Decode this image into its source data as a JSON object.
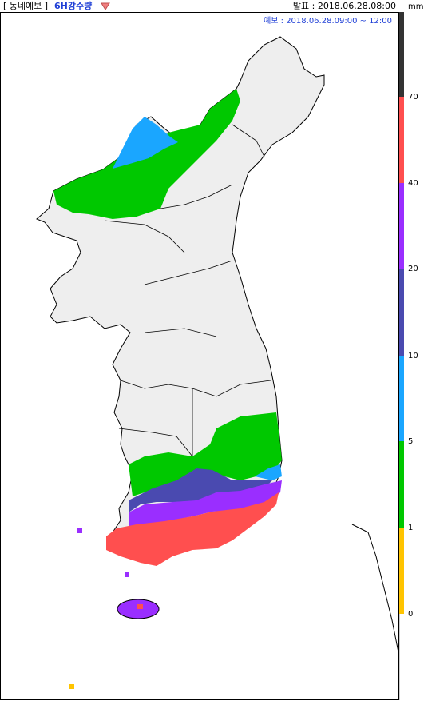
{
  "header": {
    "title": "[ 동네예보 ]",
    "variable": "6H강수량",
    "issued": "발표 : 2018.06.28.08:00",
    "forecast_time": "예보 : 2018.06.28.09:00 ~ 12:00"
  },
  "legend": {
    "unit": "mm",
    "labels": [
      "70",
      "40",
      "20",
      "10",
      "5",
      "1",
      "0"
    ],
    "colors": {
      "top": "#333333",
      "over_70": "#ff4f4f",
      "40_70": "#9a2eff",
      "20_40": "#4a4ab0",
      "10_20": "#1aa6ff",
      "5_10": "#00c800",
      "1_5": "#00c800",
      "0_1": "#ffc400",
      "none": "#ffffff"
    }
  },
  "map": {
    "land_color": "#eeeeee",
    "border_color": "#000000",
    "rain_colors": {
      "green": "#00c800",
      "blue": "#1aa6ff",
      "navy": "#4a4ab0",
      "purple": "#9a2eff",
      "red": "#ff4f4f",
      "yellow": "#ffc400"
    }
  }
}
